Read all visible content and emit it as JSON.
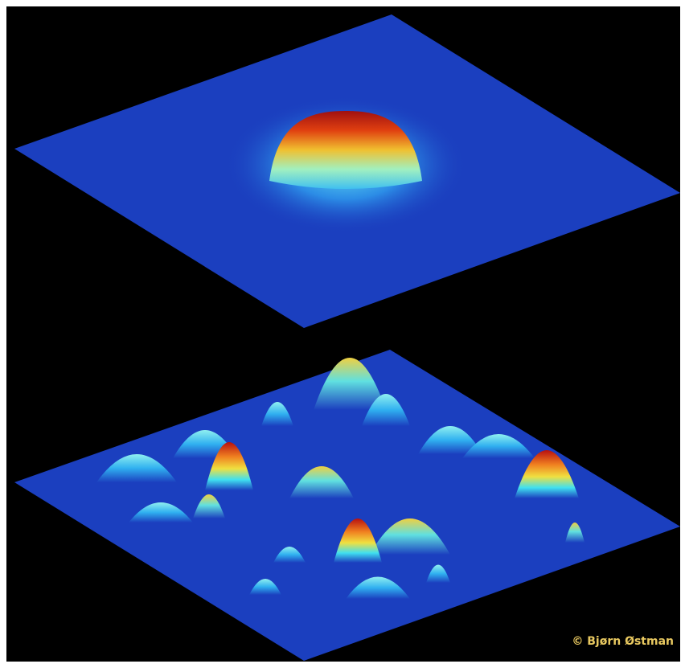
{
  "credit": "© Bjørn Østman"
}
